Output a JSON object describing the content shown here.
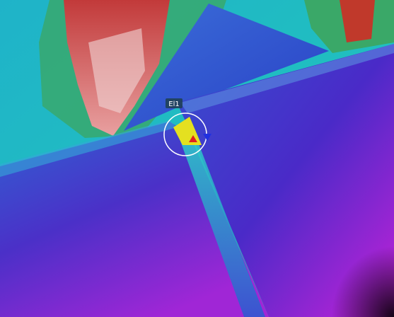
{
  "annotation": {
    "label": "El1"
  }
}
